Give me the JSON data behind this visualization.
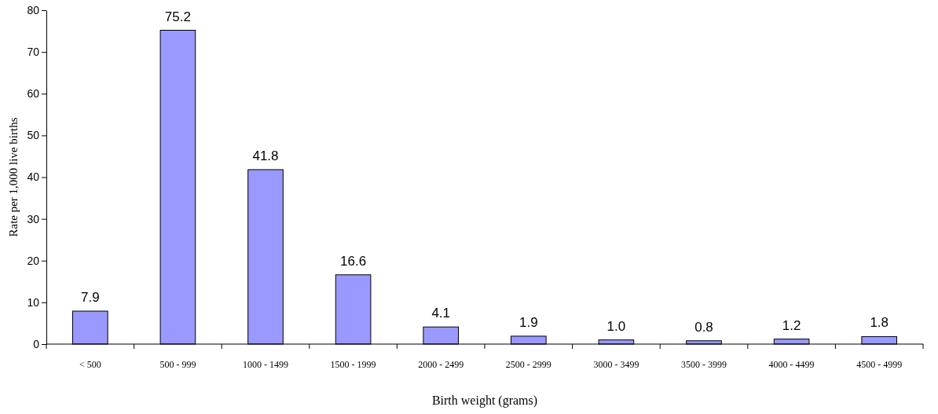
{
  "chart_data": {
    "type": "bar",
    "xlabel": "Birth weight (grams)",
    "ylabel": "Rate per 1,000 live births",
    "categories": [
      "< 500",
      "500 - 999",
      "1000 - 1499",
      "1500 - 1999",
      "2000 - 2499",
      "2500 - 2999",
      "3000 - 3499",
      "3500 - 3999",
      "4000 - 4499",
      "4500 - 4999"
    ],
    "values": [
      7.9,
      75.2,
      41.8,
      16.6,
      4.1,
      1.9,
      1.0,
      0.8,
      1.2,
      1.8
    ],
    "value_labels": [
      "7.9",
      "75.2",
      "41.8",
      "16.6",
      "4.1",
      "1.9",
      "1.0",
      "0.8",
      "1.2",
      "1.8"
    ],
    "color": "#9999ff",
    "ylim": [
      0,
      80
    ],
    "yticks": [
      0,
      10,
      20,
      30,
      40,
      50,
      60,
      70,
      80
    ],
    "grid": false
  }
}
